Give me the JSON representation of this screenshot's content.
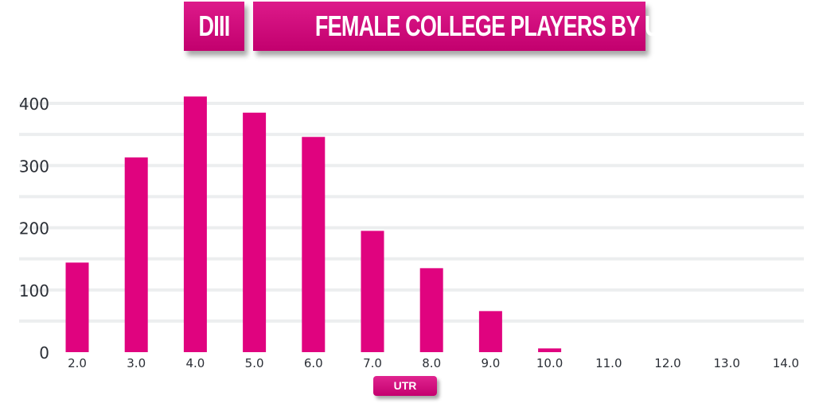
{
  "header": {
    "division": "DIII",
    "title": "FEMALE COLLEGE PLAYERS BY UTR"
  },
  "chart_data": {
    "type": "bar",
    "title": "FEMALE COLLEGE PLAYERS BY UTR",
    "xlabel": "UTR",
    "ylabel": "",
    "categories": [
      "2.0",
      "3.0",
      "4.0",
      "5.0",
      "6.0",
      "7.0",
      "8.0",
      "9.0",
      "10.0",
      "11.0",
      "12.0",
      "13.0",
      "14.0"
    ],
    "values": [
      144,
      313,
      411,
      385,
      346,
      195,
      135,
      66,
      6,
      0,
      0,
      0,
      0
    ],
    "ylim": [
      0,
      400
    ],
    "yticks": [
      "0",
      "100",
      "200",
      "300",
      "400"
    ],
    "grid": true,
    "bar_color": "#e0037f",
    "grid_color": "#eceeef"
  }
}
